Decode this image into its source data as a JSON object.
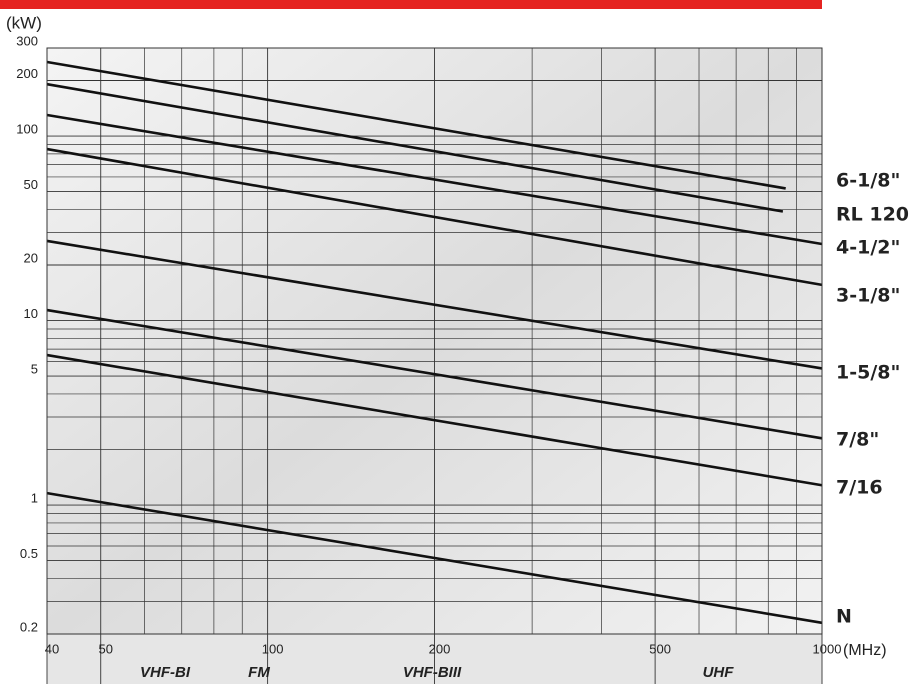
{
  "chart_data": {
    "type": "line",
    "y_unit": "(kW)",
    "x_unit": "(MHz)",
    "xscale": "log",
    "yscale": "log",
    "grid": true,
    "xlim": [
      40,
      1000
    ],
    "ylim": [
      0.2,
      300
    ],
    "xticks": [
      40,
      50,
      100,
      200,
      500,
      1000
    ],
    "xminorticks": [
      60,
      70,
      80,
      90,
      300,
      400,
      600,
      700,
      800,
      900
    ],
    "yticks": [
      0.2,
      0.5,
      1,
      5,
      10,
      20,
      50,
      100,
      200,
      300
    ],
    "yminorticks": [
      0.3,
      0.4,
      0.6,
      0.7,
      0.8,
      0.9,
      2,
      3,
      4,
      6,
      7,
      8,
      9,
      30,
      40,
      60,
      70,
      80,
      90
    ],
    "bands": [
      "VHF-BI",
      "FM",
      "VHF-BIII",
      "UHF"
    ],
    "series": [
      {
        "name": "6-1/8\"",
        "color": "#111111",
        "x": [
          40,
          860
        ],
        "values": [
          252,
          52
        ]
      },
      {
        "name": "RL 120",
        "color": "#111111",
        "x": [
          40,
          850
        ],
        "values": [
          191,
          39
        ]
      },
      {
        "name": "4-1/2\"",
        "color": "#111111",
        "x": [
          40,
          1000
        ],
        "values": [
          130,
          26
        ]
      },
      {
        "name": "3-1/8\"",
        "color": "#111111",
        "x": [
          40,
          1000
        ],
        "values": [
          85,
          15.6
        ]
      },
      {
        "name": "1-5/8\"",
        "color": "#111111",
        "x": [
          40,
          1000
        ],
        "values": [
          27,
          5.5
        ]
      },
      {
        "name": "7/8\"",
        "color": "#111111",
        "x": [
          40,
          1000
        ],
        "values": [
          11.4,
          2.3
        ]
      },
      {
        "name": "7/16",
        "color": "#111111",
        "x": [
          40,
          1000
        ],
        "values": [
          6.5,
          1.28
        ]
      },
      {
        "name": "N",
        "color": "#111111",
        "x": [
          40,
          1000
        ],
        "values": [
          1.16,
          0.23
        ]
      }
    ]
  }
}
